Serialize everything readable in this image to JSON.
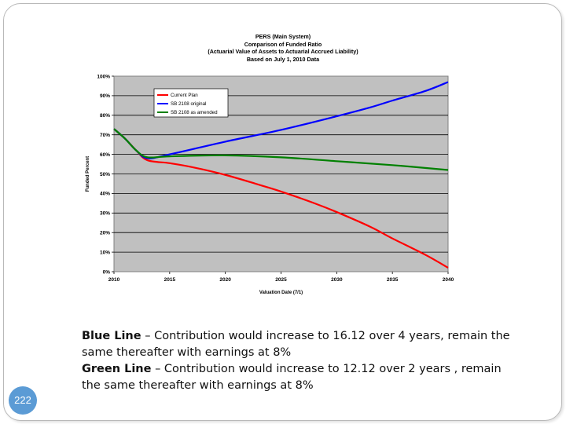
{
  "slide": {
    "page_number": "222",
    "notes": [
      {
        "label": "Blue Line",
        "text": " – Contribution would increase to 16.12 over 4 years, remain the same thereafter with earnings at 8%"
      },
      {
        "label": "Green Line",
        "text": " – Contribution would increase to 12.12 over 2 years , remain the same thereafter with earnings at 8%"
      }
    ]
  },
  "chart_data": {
    "type": "line",
    "title": [
      "PERS (Main System)",
      "Comparison of Funded Ratio",
      "(Actuarial Value of Assets to Actuarial Accrued Liability)",
      "Based on July 1, 2010 Data"
    ],
    "xlabel": "Valuation Date (7/1)",
    "ylabel": "Funded Percent",
    "xlim": [
      2010,
      2040
    ],
    "ylim": [
      0,
      100
    ],
    "x_ticks": [
      2010,
      2015,
      2020,
      2025,
      2030,
      2035,
      2040
    ],
    "y_ticks": [
      "0%",
      "10%",
      "20%",
      "30%",
      "40%",
      "50%",
      "60%",
      "70%",
      "80%",
      "90%",
      "100%"
    ],
    "grid": true,
    "plot_background": "#c0c0c0",
    "legend_position": "top-left",
    "series": [
      {
        "name": "Current Plan",
        "color": "#ff0000",
        "x": [
          2010,
          2011,
          2012,
          2013,
          2015,
          2017,
          2020,
          2023,
          2025,
          2028,
          2030,
          2033,
          2035,
          2038,
          2040
        ],
        "y": [
          73,
          68,
          62,
          57,
          55.5,
          53.5,
          49.5,
          44.5,
          41,
          35,
          30.5,
          23,
          17,
          8.5,
          2
        ]
      },
      {
        "name": "SB 2108 original",
        "color": "#0000ff",
        "x": [
          2010,
          2011,
          2012,
          2013,
          2015,
          2020,
          2025,
          2030,
          2033,
          2035,
          2038,
          2040
        ],
        "y": [
          73,
          68,
          62,
          58,
          60,
          66.5,
          72.5,
          79.5,
          84,
          87.5,
          92.5,
          97
        ]
      },
      {
        "name": "SB 2108 as amended",
        "color": "#008000",
        "x": [
          2010,
          2011,
          2012,
          2013,
          2015,
          2020,
          2025,
          2030,
          2035,
          2040
        ],
        "y": [
          73,
          68,
          62,
          58.5,
          59,
          59.5,
          58.5,
          56.5,
          54.5,
          52
        ]
      }
    ]
  }
}
